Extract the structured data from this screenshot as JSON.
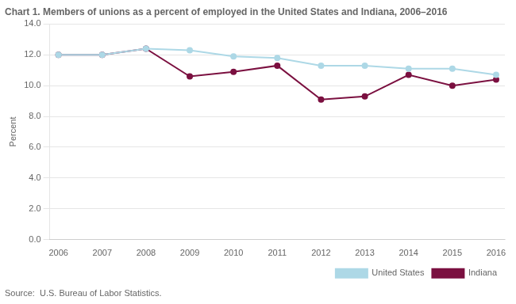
{
  "chart_data": {
    "type": "line",
    "title": "Chart 1. Members of unions as a percent of employed in the United States and Indiana, 2006–2016",
    "ylabel": "Percent",
    "annotations": [
      "Source:  U.S. Bureau of Labor Statistics."
    ],
    "x": [
      2006,
      2007,
      2008,
      2009,
      2010,
      2011,
      2012,
      2013,
      2014,
      2015,
      2016
    ],
    "series": [
      {
        "name": "United States",
        "color": "#add8e6",
        "marker": "circle",
        "line_style": "solid",
        "values": [
          12.0,
          12.0,
          12.4,
          12.3,
          11.9,
          11.8,
          11.3,
          11.3,
          11.1,
          11.1,
          10.7
        ]
      },
      {
        "name": "Indiana",
        "color": "#7b1040",
        "marker": "circle",
        "line_style": "solid",
        "values": [
          12.0,
          12.0,
          12.4,
          10.6,
          10.9,
          11.3,
          9.1,
          9.3,
          10.7,
          10.0,
          10.4
        ]
      }
    ],
    "xlim": [
      2005.8,
      2016.2
    ],
    "xticks": [
      2006,
      2007,
      2008,
      2009,
      2010,
      2011,
      2012,
      2013,
      2014,
      2015,
      2016
    ],
    "ylim": [
      0,
      14.0
    ],
    "yticks": [
      {
        "value": 0.0,
        "label": "0.0"
      },
      {
        "value": 2.0,
        "label": "2.0"
      },
      {
        "value": 4.0,
        "label": "4.0"
      },
      {
        "value": 6.0,
        "label": "6.0"
      },
      {
        "value": 8.0,
        "label": "8.0"
      },
      {
        "value": 10.0,
        "label": "10.0"
      },
      {
        "value": 12.0,
        "label": "12.0"
      },
      {
        "value": 14.0,
        "label": "14.0"
      }
    ],
    "grid": "y",
    "legend": "lower right"
  }
}
